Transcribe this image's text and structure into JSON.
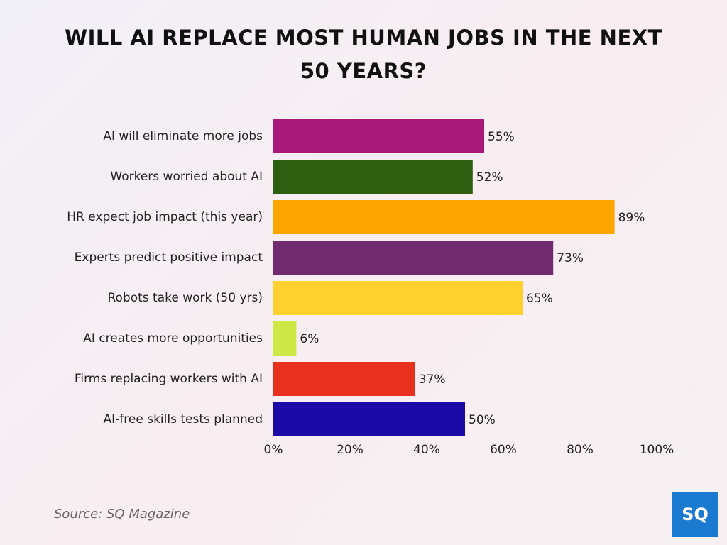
{
  "chart_data": {
    "type": "bar",
    "orientation": "horizontal",
    "title": "WILL AI REPLACE MOST HUMAN JOBS IN THE NEXT 50 YEARS?",
    "categories": [
      "AI will eliminate more jobs",
      "Workers worried about AI",
      "HR expect job impact (this year)",
      "Experts predict positive impact",
      "Robots take work (50 yrs)",
      "AI creates more opportunities",
      "Firms replacing workers with AI",
      "AI-free skills tests planned"
    ],
    "values": [
      55,
      52,
      89,
      73,
      65,
      6,
      37,
      50
    ],
    "value_labels": [
      "55%",
      "52%",
      "89%",
      "73%",
      "65%",
      "6%",
      "37%",
      "50%"
    ],
    "colors": [
      "#a8197a",
      "#2e5e0f",
      "#ffa500",
      "#722a6e",
      "#ffd12e",
      "#cde845",
      "#e8301f",
      "#1b0aa8"
    ],
    "xlim": [
      0,
      100
    ],
    "xticks": [
      {
        "value": 0,
        "label": "0%"
      },
      {
        "value": 20,
        "label": "20%"
      },
      {
        "value": 40,
        "label": "40%"
      },
      {
        "value": 60,
        "label": "60%"
      },
      {
        "value": 80,
        "label": "80%"
      },
      {
        "value": 100,
        "label": "100%"
      }
    ],
    "grid": false,
    "source": "Source: SQ Magazine",
    "logo": "SQ"
  }
}
